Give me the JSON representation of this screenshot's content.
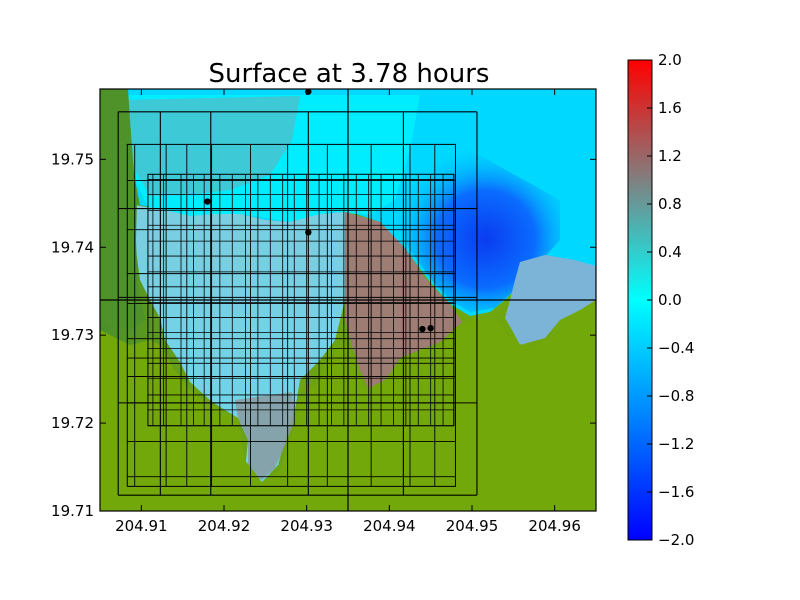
{
  "chart_data": {
    "type": "heatmap",
    "title": "Surface at 3.78 hours",
    "xlabel": "",
    "ylabel": "",
    "xlim": [
      204.905,
      204.965
    ],
    "ylim": [
      19.71,
      19.758
    ],
    "x_ticks": [
      "204.91",
      "204.92",
      "204.93",
      "204.94",
      "204.95",
      "204.96"
    ],
    "y_ticks": [
      "19.71",
      "19.72",
      "19.73",
      "19.74",
      "19.75"
    ],
    "colorbar": {
      "range": [
        -2.0,
        2.0
      ],
      "ticks": [
        "2.0",
        "1.6",
        "1.2",
        "0.8",
        "0.4",
        "0.0",
        "−0.4",
        "−0.8",
        "−1.2",
        "−1.6",
        "−2.0"
      ],
      "colormap": [
        "#0000ff",
        "#00ffff",
        "#808080",
        "#ff0000"
      ]
    },
    "colors": {
      "land": "#72a80a",
      "land_dark": "#4a8f2a",
      "ocean_zero": "#00ffff",
      "ocean_offshore": "#00d8ff",
      "ocean_trough": "#0a3cf0",
      "inundated_high": "#a07a7a",
      "inundated_mid": "#7aa8b0"
    },
    "gauges": [
      {
        "x": 204.9302,
        "y": 19.7577
      },
      {
        "x": 204.918,
        "y": 19.7452
      },
      {
        "x": 204.9302,
        "y": 19.7417
      },
      {
        "x": 204.944,
        "y": 19.7307
      },
      {
        "x": 204.945,
        "y": 19.7308
      }
    ],
    "grid_lines": {
      "major_x": [
        204.935
      ],
      "major_y": [
        19.734
      ],
      "patch_x": [
        204.9072,
        204.9123,
        204.9184,
        204.9302,
        204.9417,
        204.9506
      ],
      "patch_y": [
        19.7118,
        19.7223,
        19.7343,
        19.7444,
        19.7554
      ],
      "box2": [
        204.9083,
        204.948,
        19.7128,
        19.7517
      ],
      "x_lines_top": [
        204.9092,
        204.913,
        204.9155,
        204.9185,
        204.9232,
        204.9277,
        204.9325,
        204.9378,
        204.9425,
        204.9455
      ],
      "y_lines_left": [
        19.7139,
        19.7179,
        19.7223,
        19.7253,
        19.7274,
        19.7296,
        19.7336,
        19.737,
        19.742,
        19.7476
      ],
      "inner_x": [
        204.9114,
        204.9127,
        204.9148,
        204.9163,
        204.9176,
        204.9195,
        204.921,
        204.9226,
        204.9241,
        204.9256,
        204.9271,
        204.9285,
        204.93,
        204.9315,
        204.933,
        204.9345,
        204.936,
        204.9375,
        204.939,
        204.9405,
        204.942,
        204.9435,
        204.945,
        204.9465,
        204.9478
      ],
      "inner_y": [
        19.7197,
        19.7215,
        19.7232,
        19.7251,
        19.7268,
        19.7285,
        19.7303,
        19.732,
        19.7337,
        19.7355,
        19.7372,
        19.739,
        19.7407,
        19.7425,
        19.7442,
        19.746,
        19.7477
      ],
      "inner_box": [
        204.9108,
        204.9478,
        19.7197,
        19.7483
      ]
    }
  }
}
